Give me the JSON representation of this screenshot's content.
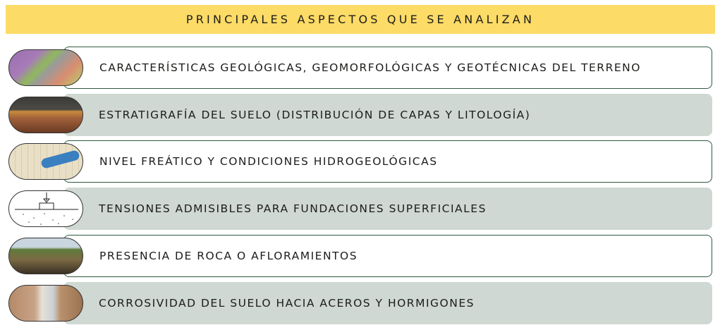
{
  "title": "PRINCIPALES ASPECTOS QUE SE ANALIZAN",
  "colors": {
    "banner": "#fcdb66",
    "row_alt": "#cfd8d2",
    "border": "#2f5a3f"
  },
  "items": [
    {
      "label": "CARACTERÍSTICAS GEOLÓGICAS, GEOMORFOLÓGICAS Y GEOTÉCNICAS DEL TERRENO",
      "image": "geological-map"
    },
    {
      "label": "ESTRATIGRAFÍA DEL SUELO (DISTRIBUCIÓN DE CAPAS Y LITOLOGÍA)",
      "image": "soil-strata-photo"
    },
    {
      "label": "NIVEL FREÁTICO Y CONDICIONES HIDROGEOLÓGICAS",
      "image": "hydro-map"
    },
    {
      "label": "TENSIONES ADMISIBLES PARA FUNDACIONES SUPERFICIALES",
      "image": "foundation-diagram"
    },
    {
      "label": "PRESENCIA DE ROCA O AFLORAMIENTOS",
      "image": "outcrop-photo"
    },
    {
      "label": "CORROSIVIDAD DEL SUELO HACIA ACEROS Y HORMIGONES",
      "image": "soil-pit-photo"
    }
  ]
}
